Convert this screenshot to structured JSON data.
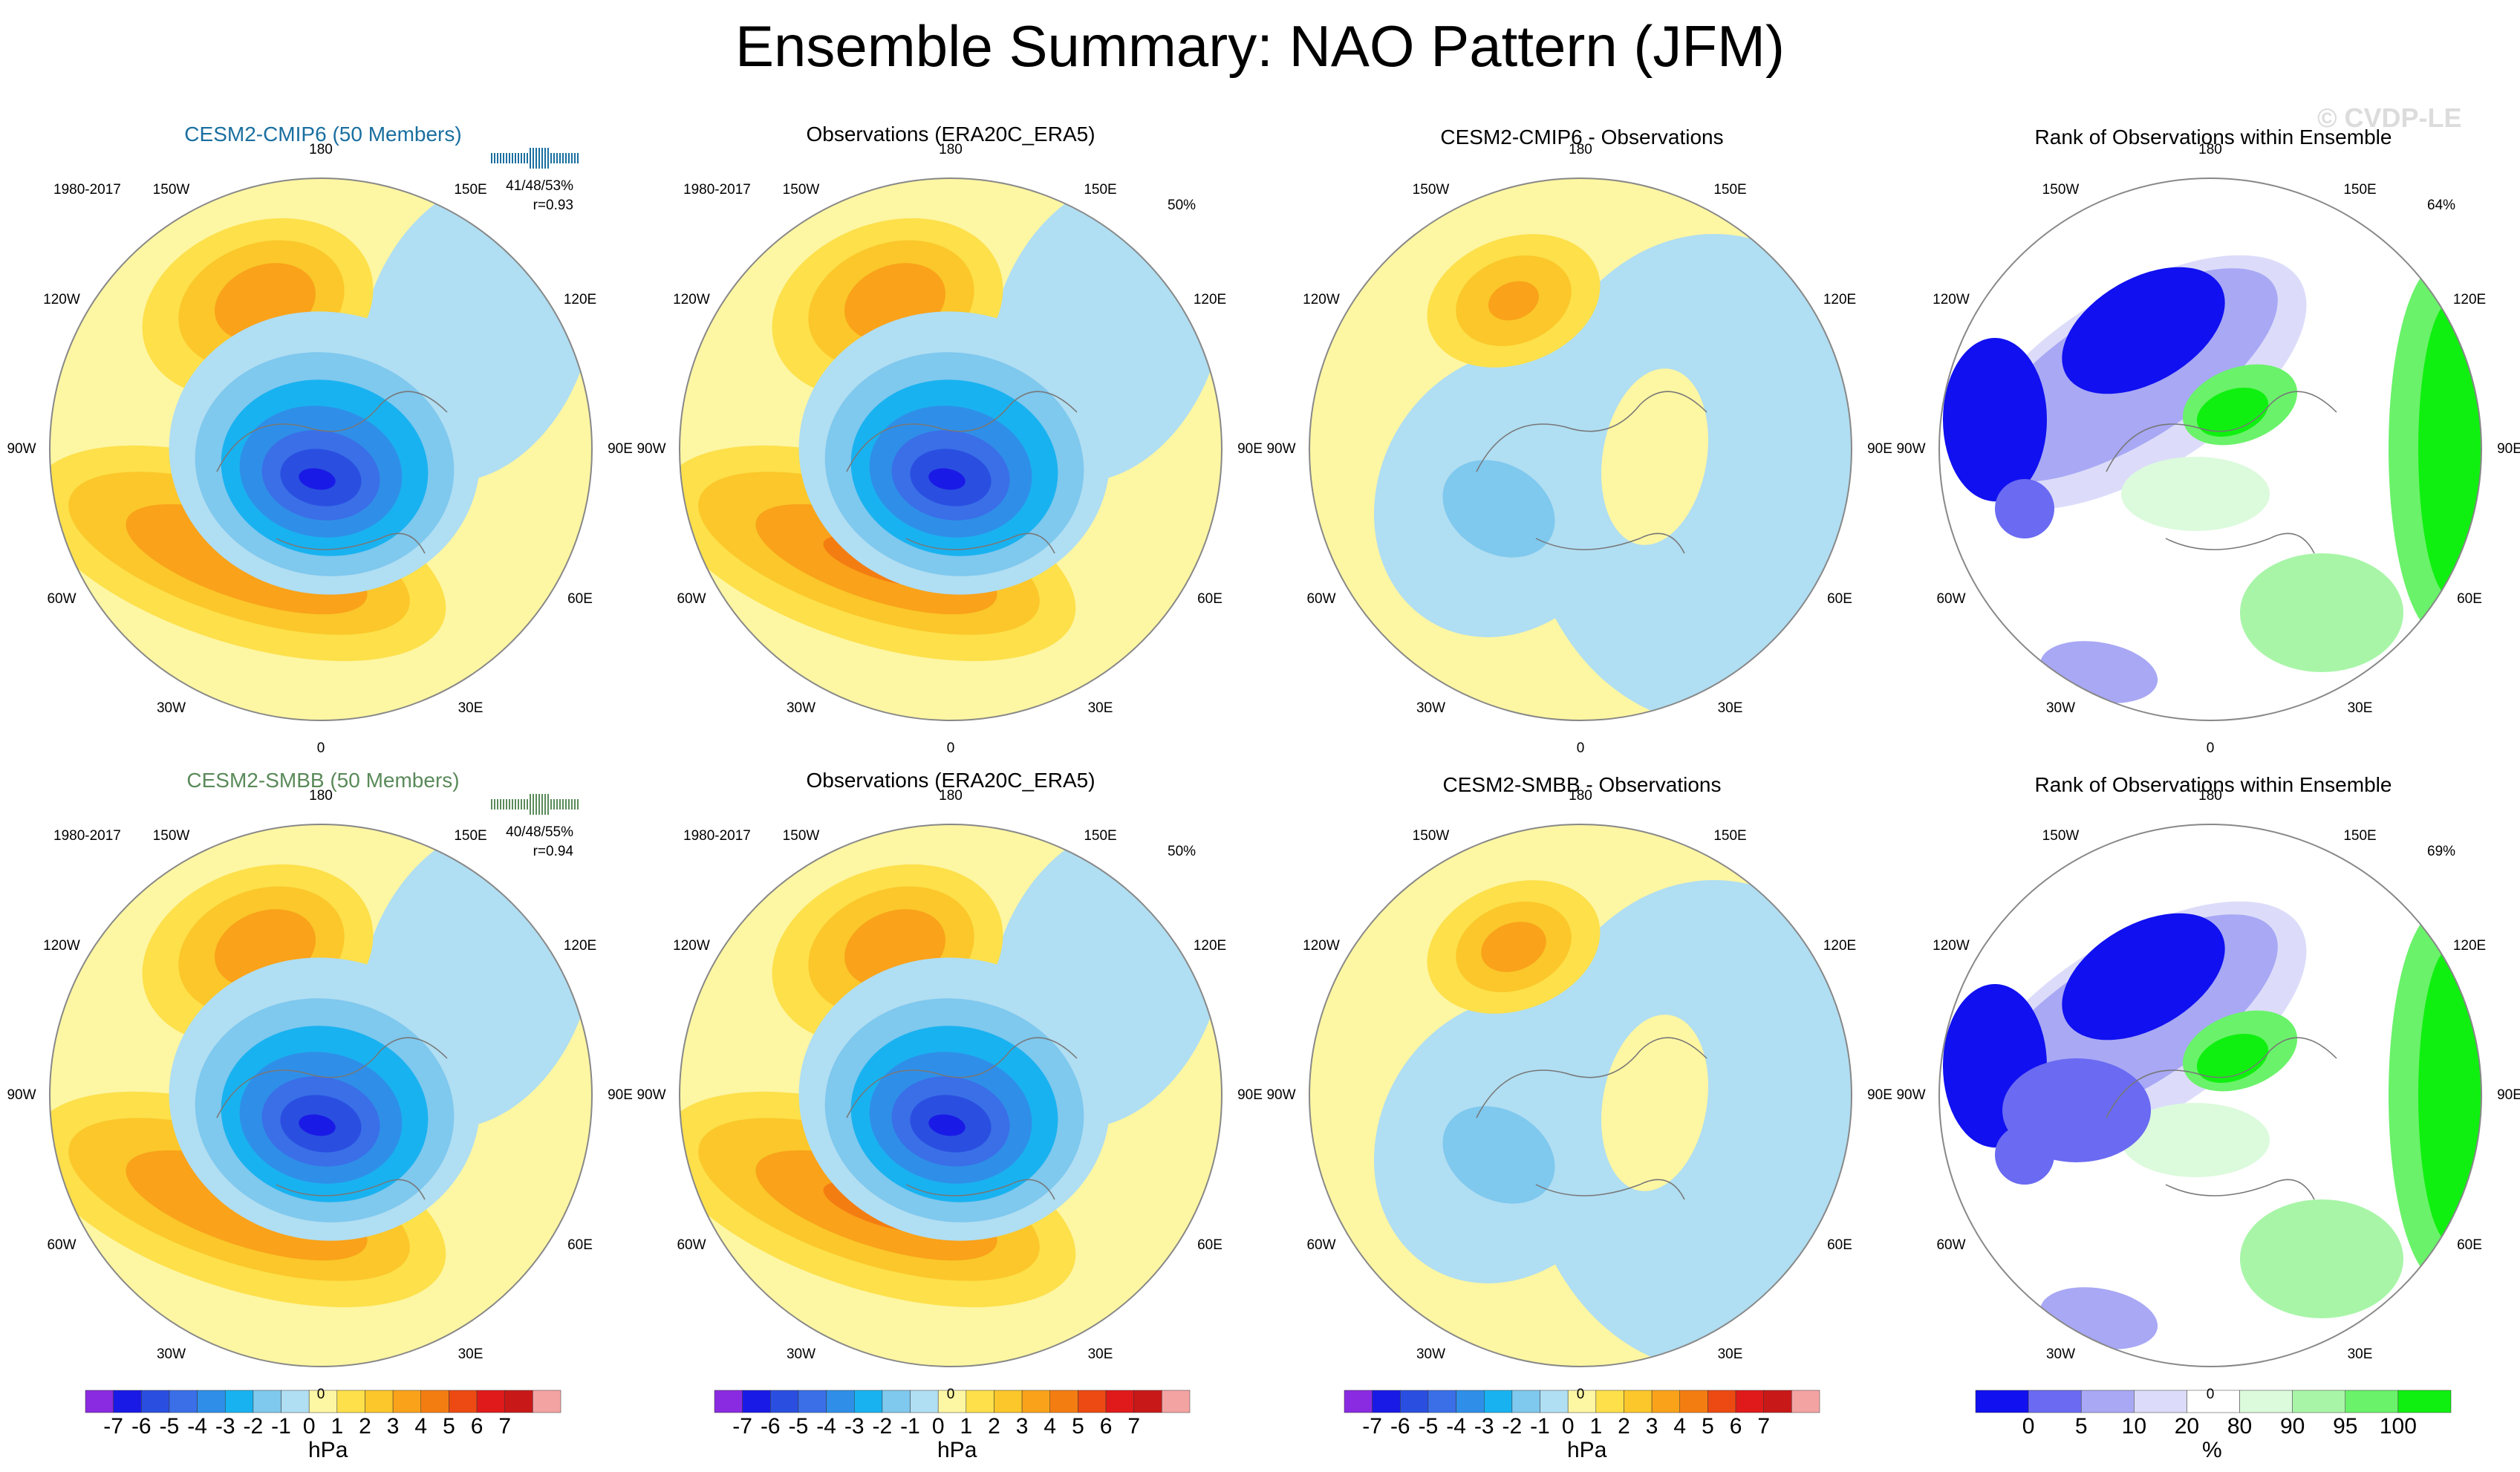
{
  "figure": {
    "title": "Ensemble Summary: NAO Pattern (JFM)",
    "watermark": "© CVDP-LE"
  },
  "colors": {
    "cmip_title": "#1a6fa0",
    "smbb_title": "#5a8a5a",
    "map_background": "#fdf6a3",
    "neg1": "#b0def2",
    "ocean_blue": "#b0def2"
  },
  "rows": [
    {
      "model_title": "CESM2-CMIP6 (50 Members)",
      "years": "1980-2017",
      "stats": "41/48/53%",
      "corr": "r=0.93",
      "obs_title": "Observations (ERA20C_ERA5)",
      "obs_years": "1980-2017",
      "obs_pct": "50%",
      "diff_title": "CESM2-CMIP6 - Observations",
      "rank_title": "Rank of Observations within Ensemble",
      "rank_pct": "64%"
    },
    {
      "model_title": "CESM2-SMBB (50 Members)",
      "years": "1980-2017",
      "stats": "40/48/55%",
      "corr": "r=0.94",
      "obs_title": "Observations (ERA20C_ERA5)",
      "obs_years": "1980-2017",
      "obs_pct": "50%",
      "diff_title": "CESM2-SMBB - Observations",
      "rank_title": "Rank of Observations within Ensemble",
      "rank_pct": "69%"
    }
  ],
  "longitude_labels": [
    "180",
    "150E",
    "120E",
    "90E",
    "60E",
    "30E",
    "0",
    "30W",
    "60W",
    "90W",
    "120W",
    "150W"
  ],
  "colorbar_hpa": {
    "unit": "hPa",
    "ticks": [
      "-7",
      "-6",
      "-5",
      "-4",
      "-3",
      "-2",
      "-1",
      "0",
      "1",
      "2",
      "3",
      "4",
      "5",
      "6",
      "7"
    ],
    "colors": [
      "#8a2be2",
      "#1a1ae6",
      "#2a4fe0",
      "#3a6fe8",
      "#2f8fe8",
      "#19b2f0",
      "#7fc8ee",
      "#b0def2",
      "#fdf6a3",
      "#fde04a",
      "#fbc72a",
      "#f9a21a",
      "#f47d12",
      "#ec4a12",
      "#e01a1a",
      "#c81818",
      "#f4a3a3"
    ]
  },
  "colorbar_rank": {
    "unit": "%",
    "ticks": [
      "0",
      "5",
      "10",
      "20",
      "80",
      "90",
      "95",
      "100"
    ],
    "colors": [
      "#1010f0",
      "#6a6af2",
      "#a8a8f5",
      "#dcdcfa",
      "#ffffff",
      "#dcfadc",
      "#a8f5a8",
      "#6af26a",
      "#10f010"
    ]
  },
  "chart_data": [
    {
      "type": "heatmap",
      "title": "CESM2-CMIP6 (50 Members)",
      "projection": "north polar stereographic",
      "variable": "sea level pressure NAO pattern",
      "units": "hPa",
      "levels": [
        -7,
        -6,
        -5,
        -4,
        -3,
        -2,
        -1,
        0,
        1,
        2,
        3,
        4,
        5,
        6,
        7
      ],
      "centers": [
        {
          "name": "Icelandic low",
          "value": -6.5
        },
        {
          "name": "Azores high",
          "value": 3.5
        },
        {
          "name": "North Pacific high",
          "value": 3.5
        }
      ]
    },
    {
      "type": "heatmap",
      "title": "Observations (ERA20C_ERA5)",
      "units": "hPa",
      "centers": [
        {
          "name": "Icelandic low",
          "value": -6
        },
        {
          "name": "Azores high",
          "value": 4.5
        }
      ]
    },
    {
      "type": "heatmap",
      "title": "CESM2-CMIP6 - Observations",
      "units": "hPa",
      "centers": [
        {
          "name": "North Pacific",
          "value": 3.5
        },
        {
          "name": "Eurasia",
          "value": -1
        }
      ]
    },
    {
      "type": "heatmap",
      "title": "Rank of Observations within Ensemble",
      "units": "%",
      "levels": [
        0,
        5,
        10,
        20,
        80,
        90,
        95,
        100
      ]
    },
    {
      "type": "heatmap",
      "title": "CESM2-SMBB (50 Members)",
      "units": "hPa",
      "centers": [
        {
          "name": "Icelandic low",
          "value": -6.5
        },
        {
          "name": "Azores high",
          "value": 3.5
        },
        {
          "name": "North Pacific high",
          "value": 3.5
        }
      ]
    },
    {
      "type": "heatmap",
      "title": "Observations (ERA20C_ERA5)",
      "units": "hPa",
      "centers": [
        {
          "name": "Icelandic low",
          "value": -6
        },
        {
          "name": "Azores high",
          "value": 4.5
        }
      ]
    },
    {
      "type": "heatmap",
      "title": "CESM2-SMBB - Observations",
      "units": "hPa",
      "centers": [
        {
          "name": "North Pacific",
          "value": 4.5
        },
        {
          "name": "Eurasia",
          "value": -1
        }
      ]
    },
    {
      "type": "heatmap",
      "title": "Rank of Observations within Ensemble",
      "units": "%",
      "levels": [
        0,
        5,
        10,
        20,
        80,
        90,
        95,
        100
      ]
    }
  ]
}
